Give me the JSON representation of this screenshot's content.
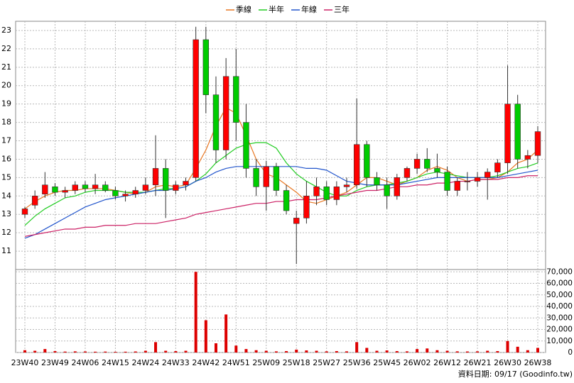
{
  "chart_data": {
    "type": "candlestick",
    "categories": [
      "23W40",
      null,
      null,
      "23W49",
      null,
      null,
      "24W06",
      null,
      null,
      "24W15",
      null,
      null,
      "24W24",
      null,
      null,
      "24W33",
      null,
      null,
      "24W42",
      null,
      null,
      "24W51",
      null,
      null,
      "25W09",
      null,
      null,
      "25W18",
      null,
      null,
      "25W27",
      null,
      null,
      "25W36",
      null,
      null,
      "25W45",
      null,
      null,
      "26W02",
      null,
      null,
      "26W12",
      null,
      null,
      "26W21",
      null,
      null,
      "26W30",
      null,
      null,
      "26W38"
    ],
    "candles": {
      "up_color": "#ff0000",
      "down_color": "#00cc00",
      "open": [
        13.0,
        13.5,
        14.1,
        14.5,
        14.2,
        14.3,
        14.6,
        14.4,
        14.6,
        14.3,
        14.0,
        14.1,
        14.3,
        14.6,
        15.5,
        14.3,
        14.6,
        15.0,
        22.5,
        19.5,
        16.5,
        20.5,
        18.0,
        15.5,
        14.5,
        15.6,
        14.3,
        12.5,
        12.8,
        14.0,
        14.5,
        13.8,
        14.5,
        14.6,
        16.8,
        15.0,
        14.6,
        14.0,
        15.0,
        15.5,
        16.0,
        15.5,
        15.3,
        14.3,
        14.8,
        14.8,
        15.0,
        15.3,
        15.8,
        19.0,
        16.0,
        16.2
      ],
      "high": [
        13.4,
        14.3,
        15.3,
        14.7,
        14.5,
        14.8,
        14.8,
        15.2,
        14.8,
        14.5,
        14.3,
        14.5,
        15.0,
        17.3,
        16.0,
        14.8,
        15.0,
        23.2,
        23.2,
        20.5,
        21.5,
        22.0,
        19.0,
        16.0,
        15.9,
        15.8,
        14.6,
        13.2,
        14.8,
        15.0,
        14.8,
        14.8,
        15.0,
        19.3,
        17.0,
        15.3,
        15.0,
        15.2,
        15.6,
        16.3,
        16.6,
        16.3,
        15.6,
        15.0,
        15.3,
        15.3,
        15.5,
        16.0,
        21.1,
        19.5,
        16.5,
        17.8
      ],
      "low": [
        12.8,
        13.3,
        13.9,
        14.0,
        13.9,
        14.1,
        14.2,
        14.1,
        14.2,
        13.8,
        13.7,
        13.9,
        14.1,
        14.0,
        12.8,
        14.1,
        14.3,
        14.8,
        18.5,
        15.8,
        16.0,
        17.0,
        15.0,
        14.0,
        13.2,
        14.0,
        13.0,
        10.3,
        12.5,
        13.5,
        13.5,
        13.5,
        14.2,
        14.4,
        14.5,
        14.3,
        13.3,
        13.8,
        14.8,
        15.2,
        15.3,
        15.0,
        14.0,
        14.0,
        14.3,
        14.5,
        13.8,
        15.0,
        15.2,
        15.5,
        15.5,
        15.8
      ],
      "close": [
        13.3,
        14.0,
        14.6,
        14.2,
        14.3,
        14.6,
        14.4,
        14.6,
        14.3,
        14.0,
        14.1,
        14.3,
        14.6,
        15.5,
        14.3,
        14.6,
        14.8,
        22.5,
        19.5,
        16.5,
        20.5,
        18.0,
        15.5,
        14.5,
        15.6,
        14.3,
        13.2,
        12.8,
        14.0,
        14.5,
        13.8,
        14.5,
        14.6,
        16.8,
        15.0,
        14.6,
        14.0,
        15.0,
        15.5,
        16.0,
        15.5,
        15.3,
        14.3,
        14.8,
        14.8,
        15.0,
        15.3,
        15.8,
        19.0,
        16.0,
        16.2,
        17.5
      ]
    },
    "series": [
      {
        "name": "季線",
        "color": "#e87722",
        "values": [
          13.3,
          13.7,
          14.0,
          14.2,
          14.3,
          14.3,
          14.4,
          14.4,
          14.4,
          14.3,
          14.2,
          14.1,
          14.2,
          14.5,
          14.6,
          14.5,
          14.6,
          15.5,
          16.5,
          17.8,
          18.8,
          18.5,
          17.3,
          16.0,
          15.2,
          15.0,
          14.6,
          14.2,
          13.7,
          13.6,
          13.8,
          14.0,
          14.2,
          14.6,
          15.0,
          15.0,
          14.8,
          14.6,
          14.8,
          15.0,
          15.4,
          15.6,
          15.4,
          15.0,
          14.8,
          14.9,
          14.9,
          15.0,
          15.3,
          15.8,
          16.0,
          16.5
        ]
      },
      {
        "name": "半年",
        "color": "#22cc22",
        "values": [
          12.4,
          12.9,
          13.3,
          13.6,
          13.9,
          14.0,
          14.2,
          14.3,
          14.3,
          14.3,
          14.2,
          14.2,
          14.2,
          14.3,
          14.4,
          14.4,
          14.5,
          14.8,
          15.2,
          15.8,
          16.2,
          16.6,
          16.8,
          16.9,
          16.9,
          16.6,
          15.8,
          15.2,
          14.8,
          14.5,
          14.2,
          14.0,
          14.0,
          14.3,
          14.5,
          14.6,
          14.6,
          14.7,
          14.8,
          15.0,
          15.2,
          15.3,
          15.2,
          15.1,
          15.0,
          15.0,
          15.0,
          15.1,
          15.3,
          15.5,
          15.6,
          15.8
        ]
      },
      {
        "name": "年線",
        "color": "#2255cc",
        "values": [
          11.7,
          11.9,
          12.2,
          12.5,
          12.8,
          13.1,
          13.4,
          13.6,
          13.8,
          13.9,
          14.0,
          14.1,
          14.2,
          14.3,
          14.3,
          14.4,
          14.5,
          14.8,
          15.0,
          15.3,
          15.5,
          15.6,
          15.6,
          15.6,
          15.6,
          15.6,
          15.6,
          15.6,
          15.5,
          15.5,
          15.4,
          15.1,
          14.8,
          14.7,
          14.6,
          14.6,
          14.6,
          14.6,
          14.7,
          14.8,
          14.9,
          15.0,
          15.0,
          15.0,
          15.0,
          15.0,
          15.0,
          15.0,
          15.1,
          15.2,
          15.3,
          15.4
        ]
      },
      {
        "name": "三年",
        "color": "#cc2266",
        "values": [
          11.8,
          11.9,
          12.0,
          12.1,
          12.2,
          12.2,
          12.3,
          12.3,
          12.4,
          12.4,
          12.4,
          12.5,
          12.5,
          12.5,
          12.6,
          12.7,
          12.8,
          13.0,
          13.1,
          13.2,
          13.3,
          13.4,
          13.5,
          13.6,
          13.6,
          13.7,
          13.7,
          13.8,
          13.8,
          13.8,
          13.9,
          14.0,
          14.1,
          14.2,
          14.3,
          14.3,
          14.4,
          14.5,
          14.5,
          14.6,
          14.6,
          14.7,
          14.7,
          14.8,
          14.8,
          14.9,
          14.9,
          14.9,
          15.0,
          15.0,
          15.1,
          15.1
        ]
      }
    ],
    "ylim": [
      10,
      23.5
    ],
    "yticks": [
      11,
      12,
      13,
      14,
      15,
      16,
      17,
      18,
      19,
      20,
      21,
      22,
      23
    ],
    "volume": {
      "color": "#dd0000",
      "values": [
        2000,
        1500,
        3000,
        1200,
        800,
        1000,
        900,
        700,
        800,
        600,
        700,
        900,
        1500,
        9000,
        1500,
        1200,
        1500,
        70000,
        28000,
        8000,
        33000,
        6000,
        3000,
        2000,
        1500,
        1000,
        1200,
        2500,
        1800,
        1500,
        1000,
        1200,
        1000,
        9000,
        4000,
        1500,
        1800,
        1200,
        1000,
        3000,
        3500,
        2000,
        1500,
        1000,
        900,
        1000,
        1500,
        1200,
        10000,
        5000,
        2000,
        4000
      ],
      "ylim": [
        0,
        72000
      ],
      "yticks": [
        0,
        {
          "value": 10000,
          "label": "10,000"
        },
        {
          "value": 20000,
          "label": "20,000"
        },
        {
          "value": 30000,
          "label": "30,000"
        },
        {
          "value": 40000,
          "label": "40,000"
        },
        {
          "value": 50000,
          "label": "50,000"
        },
        {
          "value": 60000,
          "label": "60,000"
        },
        {
          "value": 70000,
          "label": "70,000"
        }
      ]
    },
    "grid": true,
    "legend": "top",
    "footer": "資料日期: 09/17 (Goodinfo.tw)"
  }
}
